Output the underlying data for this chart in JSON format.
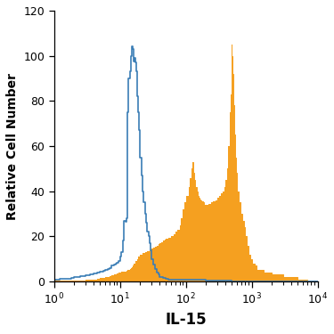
{
  "xlabel": "IL-15",
  "ylabel": "Relative Cell Number",
  "xlim_log": [
    1,
    10000
  ],
  "ylim": [
    0,
    120
  ],
  "yticks": [
    0,
    20,
    40,
    60,
    80,
    100,
    120
  ],
  "blue_color": "#3A7DB5",
  "orange_color": "#F5A020",
  "figsize": [
    3.75,
    3.75
  ],
  "dpi": 100,
  "blue_x": [
    1.0,
    1.2,
    1.5,
    1.8,
    2.0,
    2.5,
    3.0,
    3.5,
    4.0,
    4.5,
    5.0,
    5.5,
    6.0,
    6.5,
    7.0,
    7.5,
    8.0,
    8.5,
    9.0,
    9.5,
    10.0,
    10.5,
    11.0,
    11.5,
    12.0,
    12.5,
    13.0,
    13.5,
    14.0,
    14.5,
    15.0,
    15.5,
    16.0,
    16.5,
    17.0,
    17.5,
    18.0,
    18.5,
    19.0,
    19.5,
    20.0,
    21.0,
    22.0,
    23.0,
    24.0,
    25.0,
    26.0,
    27.0,
    28.0,
    29.0,
    30.0,
    32.0,
    34.0,
    36.0,
    38.0,
    40.0,
    45.0,
    50.0,
    55.0,
    60.0,
    70.0,
    80.0,
    90.0,
    100.0,
    120.0,
    150.0,
    200.0,
    300.0,
    500.0,
    1000.0,
    2000.0,
    5000.0,
    10000.0
  ],
  "blue_y": [
    1.0,
    1.0,
    1.2,
    1.3,
    1.5,
    2.0,
    2.5,
    2.8,
    3.2,
    3.5,
    4.0,
    4.5,
    4.8,
    5.0,
    5.5,
    6.0,
    7.0,
    7.5,
    8.0,
    8.5,
    9.0,
    11.0,
    13.0,
    18.0,
    27.0,
    26.5,
    28.0,
    75.0,
    90.0,
    93.0,
    100.0,
    104.0,
    103.0,
    97.5,
    99.0,
    97.0,
    93.0,
    88.0,
    82.0,
    75.0,
    67.0,
    55.0,
    47.0,
    40.0,
    35.0,
    30.0,
    26.0,
    22.0,
    20.0,
    17.0,
    14.0,
    10.0,
    7.5,
    5.5,
    4.0,
    3.0,
    2.0,
    1.5,
    1.2,
    1.0,
    1.0,
    1.0,
    1.0,
    1.0,
    1.0,
    1.0,
    0.8,
    0.5,
    0.3,
    0.2,
    0.1,
    0.0,
    0.0
  ],
  "orange_x": [
    1.0,
    1.5,
    2.0,
    2.5,
    3.0,
    3.5,
    4.0,
    4.5,
    5.0,
    5.5,
    6.0,
    6.5,
    7.0,
    7.5,
    8.0,
    8.5,
    9.0,
    9.5,
    10.0,
    10.5,
    11.0,
    11.5,
    12.0,
    12.5,
    13.0,
    13.5,
    14.0,
    14.5,
    15.0,
    15.5,
    16.0,
    17.0,
    18.0,
    19.0,
    20.0,
    22.0,
    24.0,
    26.0,
    28.0,
    30.0,
    32.0,
    34.0,
    36.0,
    38.0,
    40.0,
    42.0,
    45.0,
    48.0,
    50.0,
    55.0,
    60.0,
    65.0,
    70.0,
    75.0,
    80.0,
    85.0,
    90.0,
    95.0,
    100.0,
    110.0,
    115.0,
    120.0,
    125.0,
    130.0,
    135.0,
    140.0,
    145.0,
    150.0,
    155.0,
    160.0,
    165.0,
    170.0,
    180.0,
    190.0,
    200.0,
    220.0,
    240.0,
    260.0,
    280.0,
    300.0,
    320.0,
    340.0,
    360.0,
    380.0,
    400.0,
    420.0,
    440.0,
    460.0,
    480.0,
    490.0,
    500.0,
    510.0,
    520.0,
    540.0,
    560.0,
    580.0,
    600.0,
    640.0,
    680.0,
    720.0,
    760.0,
    800.0,
    850.0,
    900.0,
    950.0,
    1000.0,
    1100.0,
    1200.0,
    1500.0,
    2000.0,
    3000.0,
    5000.0,
    7000.0,
    10000.0
  ],
  "orange_y": [
    0.2,
    0.3,
    0.4,
    0.5,
    0.6,
    0.7,
    0.8,
    1.0,
    1.2,
    1.5,
    1.8,
    2.0,
    2.2,
    2.5,
    2.8,
    3.0,
    3.2,
    3.5,
    3.8,
    4.0,
    4.2,
    4.5,
    4.5,
    4.5,
    4.8,
    5.0,
    5.2,
    5.5,
    6.0,
    6.5,
    7.0,
    8.0,
    9.0,
    10.0,
    11.0,
    12.0,
    12.5,
    13.0,
    13.5,
    14.0,
    14.5,
    15.0,
    15.5,
    16.0,
    16.5,
    17.0,
    17.5,
    18.0,
    18.5,
    19.0,
    19.5,
    20.0,
    21.0,
    22.0,
    23.0,
    25.0,
    28.0,
    32.0,
    35.0,
    38.0,
    42.0,
    46.0,
    50.0,
    53.0,
    48.0,
    45.0,
    42.0,
    40.0,
    38.0,
    37.0,
    36.5,
    36.0,
    35.5,
    35.0,
    34.0,
    34.0,
    34.5,
    35.0,
    35.5,
    36.0,
    37.0,
    38.0,
    39.0,
    40.0,
    42.0,
    45.0,
    50.0,
    60.0,
    75.0,
    83.0,
    105.0,
    100.0,
    92.0,
    78.0,
    65.0,
    55.0,
    48.0,
    40.0,
    35.0,
    30.0,
    27.0,
    24.0,
    20.0,
    16.0,
    12.0,
    10.0,
    8.0,
    7.0,
    5.0,
    4.0,
    3.0,
    2.0,
    1.0,
    0.0
  ]
}
